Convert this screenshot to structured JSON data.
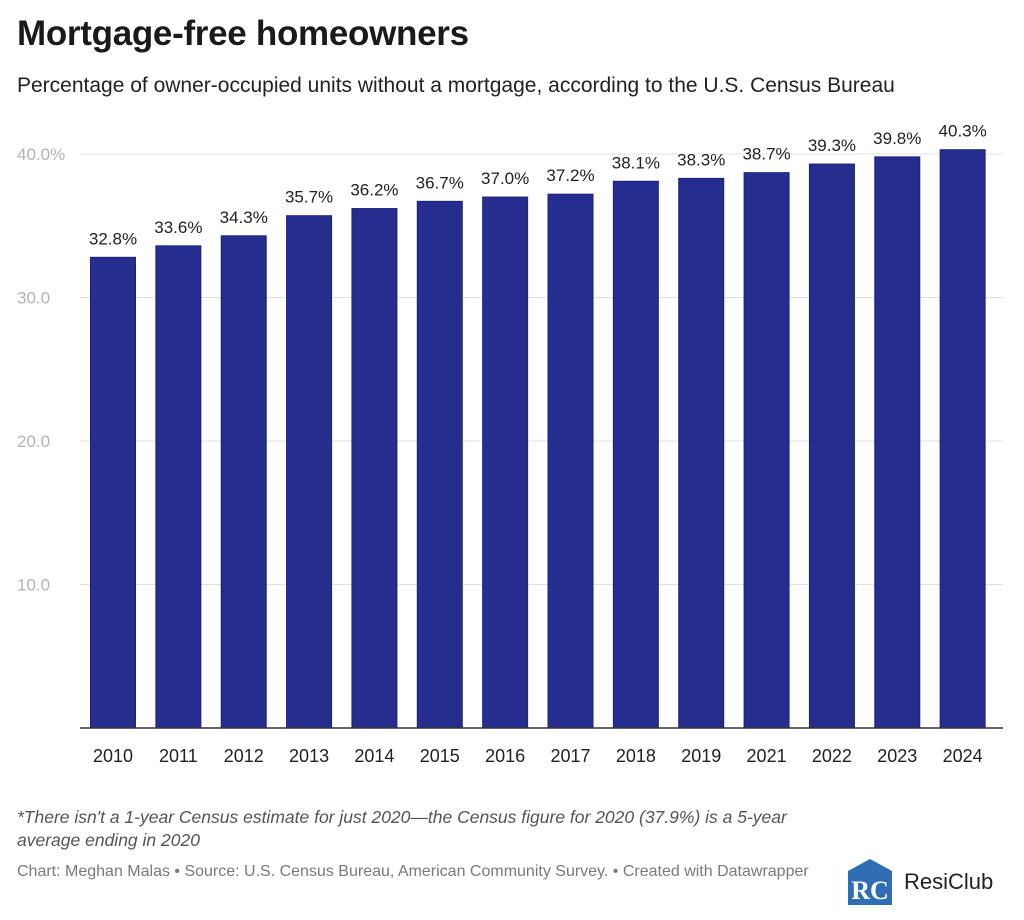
{
  "header": {
    "title": "Mortgage-free homeowners",
    "subtitle": "Percentage of owner-occupied units without a mortgage, according to the U.S. Census Bureau"
  },
  "chart_data": {
    "type": "bar",
    "title": "Mortgage-free homeowners",
    "subtitle": "Percentage of owner-occupied units without a mortgage, according to the U.S. Census Bureau",
    "categories": [
      "2010",
      "2011",
      "2012",
      "2013",
      "2014",
      "2015",
      "2016",
      "2017",
      "2018",
      "2019",
      "2021",
      "2022",
      "2023",
      "2024"
    ],
    "values": [
      32.8,
      33.6,
      34.3,
      35.7,
      36.2,
      36.7,
      37.0,
      37.2,
      38.1,
      38.3,
      38.7,
      39.3,
      39.8,
      40.3
    ],
    "data_labels": [
      "32.8%",
      "33.6%",
      "34.3%",
      "35.7%",
      "36.2%",
      "36.7%",
      "37.0%",
      "37.2%",
      "38.1%",
      "38.3%",
      "38.7%",
      "39.3%",
      "39.8%",
      "40.3%"
    ],
    "yticks": [
      10,
      20,
      30,
      40
    ],
    "ytick_labels": [
      "10.0",
      "20.0",
      "30.0",
      "40.0%"
    ],
    "ylim": [
      0,
      40.3
    ],
    "xlabel": "",
    "ylabel": "",
    "grid": true,
    "bar_color": "#252e8f"
  },
  "footer": {
    "note": "*There isn't a 1-year Census estimate for just 2020—the Census figure for 2020 (37.9%) is a 5-year average ending in 2020",
    "credits": "Chart: Meghan Malas • Source: U.S. Census Bureau, American Community Survey. • Created with Datawrapper",
    "logo_text": "ResiClub",
    "logo_initials": "RC",
    "logo_color": "#2f6db5"
  }
}
